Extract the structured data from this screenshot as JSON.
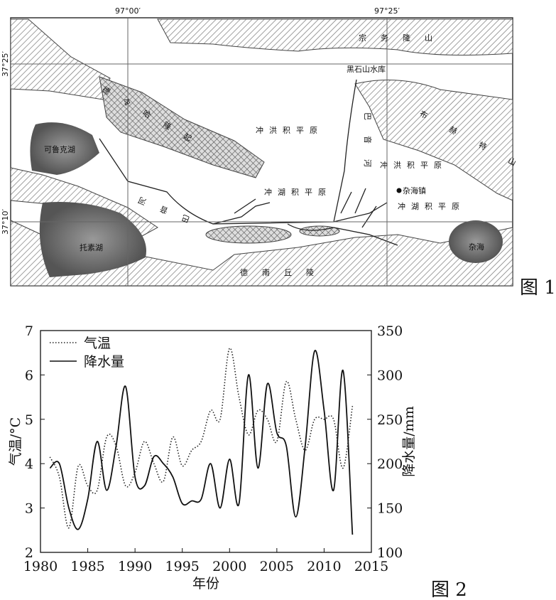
{
  "map": {
    "lon_labels": [
      "97°00′",
      "97°25′"
    ],
    "lat_labels": [
      "37°25′",
      "37°10′"
    ],
    "labels": [
      "宗务隆山",
      "黑石山水库",
      "德令哈隆起",
      "冲洪积平原",
      "巴音河",
      "布赫特山",
      "冲洪积平原",
      "可鲁克湖",
      "巴音河",
      "冲湖积平原",
      "杂海镇",
      "冲湖积平原",
      "托素湖",
      "杂海",
      "德南丘陵"
    ],
    "caption": "图 1"
  },
  "chart_data": {
    "type": "line",
    "caption": "图 2",
    "xlabel": "年份",
    "ylabel": "气温/°C",
    "y2label": "降水量/mm",
    "x": [
      1981,
      1982,
      1983,
      1984,
      1985,
      1986,
      1987,
      1988,
      1989,
      1990,
      1991,
      1992,
      1993,
      1994,
      1995,
      1996,
      1997,
      1998,
      1999,
      2000,
      2001,
      2002,
      2003,
      2004,
      2005,
      2006,
      2007,
      2008,
      2009,
      2010,
      2011,
      2012,
      2013
    ],
    "xlim": [
      1980,
      2015
    ],
    "xticks": [
      1980,
      1985,
      1990,
      1995,
      2000,
      2005,
      2010,
      2015
    ],
    "ylim": [
      2,
      7
    ],
    "yticks": [
      2,
      3,
      4,
      5,
      6,
      7
    ],
    "y2lim": [
      100,
      350
    ],
    "y2ticks": [
      100,
      150,
      200,
      250,
      300,
      350
    ],
    "series": [
      {
        "name": "气温",
        "color": "#222",
        "style": "dotted",
        "values": [
          4.15,
          3.7,
          2.55,
          3.95,
          3.5,
          3.4,
          4.6,
          4.4,
          3.5,
          3.8,
          4.5,
          4.0,
          3.6,
          4.6,
          3.95,
          4.3,
          4.5,
          5.2,
          5.0,
          6.6,
          5.5,
          4.65,
          5.2,
          5.0,
          4.5,
          5.85,
          5.0,
          4.3,
          5.0,
          5.0,
          5.0,
          3.9,
          5.3
        ]
      },
      {
        "name": "降水量",
        "color": "#111",
        "style": "solid",
        "axis": "y2",
        "values": [
          195,
          200,
          150,
          126,
          160,
          225,
          170,
          220,
          287,
          185,
          175,
          208,
          200,
          185,
          155,
          158,
          160,
          200,
          150,
          205,
          155,
          300,
          195,
          290,
          235,
          220,
          140,
          220,
          327,
          260,
          170,
          305,
          120
        ]
      }
    ]
  }
}
